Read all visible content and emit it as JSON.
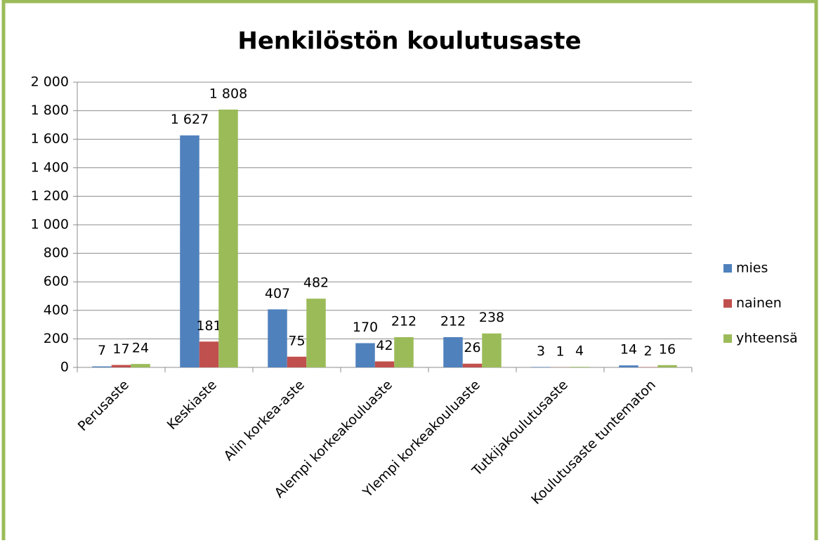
{
  "chart_data": {
    "type": "bar",
    "title": "Henkilöstön koulutusaste",
    "categories": [
      "Perusaste",
      "Keskiaste",
      "Alin korkea-aste",
      "Alempi korkeakouluaste",
      "Ylempi korkeakouluaste",
      "Tutkijakoulutusaste",
      "Koulutusaste tuntematon"
    ],
    "series": [
      {
        "name": "mies",
        "color": "#4f81bd",
        "values": [
          7,
          1627,
          407,
          170,
          212,
          3,
          14
        ],
        "value_labels": [
          "7",
          "1 627",
          "407",
          "170",
          "212",
          "3",
          "14"
        ]
      },
      {
        "name": "nainen",
        "color": "#c0504d",
        "values": [
          17,
          181,
          75,
          42,
          26,
          1,
          2
        ],
        "value_labels": [
          "17",
          "181",
          "75",
          "42",
          "26",
          "1",
          "2"
        ]
      },
      {
        "name": "yhteensä",
        "color": "#9bbb59",
        "values": [
          24,
          1808,
          482,
          212,
          238,
          4,
          16
        ],
        "value_labels": [
          "24",
          "1 808",
          "482",
          "212",
          "238",
          "4",
          "16"
        ]
      }
    ],
    "ylim": [
      0,
      2000
    ],
    "yticks": [
      0,
      200,
      400,
      600,
      800,
      {
        "value": 1000,
        "label": "1 000"
      },
      {
        "value": 1200,
        "label": "1 200"
      },
      {
        "value": 1400,
        "label": "1 400"
      },
      {
        "value": 1600,
        "label": "1 600"
      },
      {
        "value": 1800,
        "label": "1 800"
      },
      {
        "value": 2000,
        "label": "2 000"
      }
    ],
    "grid": true,
    "legend": "right"
  }
}
